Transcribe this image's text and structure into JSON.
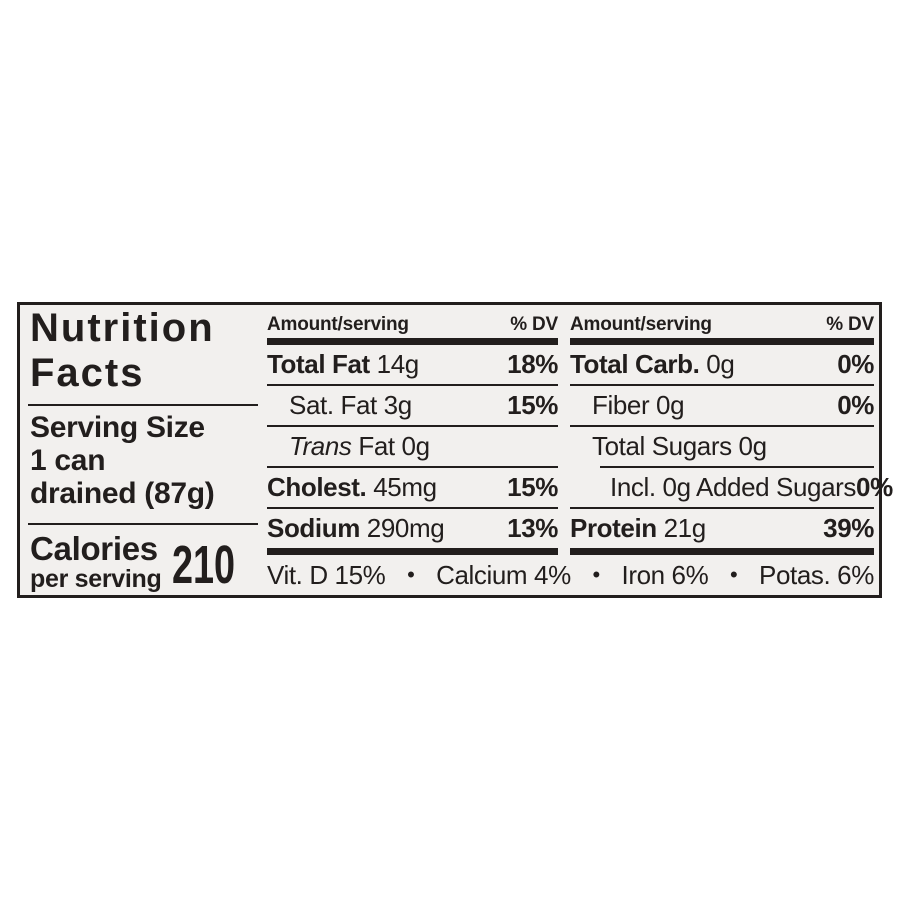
{
  "colors": {
    "ink": "#221e1d",
    "label_background": "#f2f0ee",
    "page_background": "#ffffff"
  },
  "label": {
    "left_panel": {
      "title_line1": "Nutrition",
      "title_line2": "Facts",
      "serving_label": "Serving Size",
      "serving_line1": "1 can",
      "serving_line2": "drained (87g)",
      "calories_label": "Calories",
      "calories_note": "per serving",
      "calories_value": "210"
    },
    "columns": [
      {
        "header_amount": "Amount/serving",
        "header_dv": "% DV",
        "rows": [
          {
            "bold": "Total Fat",
            "text": " 14g",
            "dv": "18%"
          },
          {
            "text": "Sat. Fat 3g",
            "dv": "15%"
          },
          {
            "italic": "Trans",
            "text": " Fat 0g",
            "dv": ""
          },
          {
            "bold": "Cholest.",
            "text": " 45mg",
            "dv": "15%"
          },
          {
            "bold": "Sodium",
            "text": " 290mg",
            "dv": "13%"
          }
        ]
      },
      {
        "header_amount": "Amount/serving",
        "header_dv": "% DV",
        "rows": [
          {
            "bold": "Total Carb.",
            "text": " 0g",
            "dv": "0%"
          },
          {
            "text": "Fiber 0g",
            "dv": "0%"
          },
          {
            "text": "Total Sugars 0g",
            "dv": ""
          },
          {
            "text": "Incl. 0g Added Sugars",
            "dv": "0%"
          },
          {
            "bold": "Protein",
            "text": " 21g",
            "dv": "39%"
          }
        ]
      }
    ],
    "micronutrients": {
      "separator": "•",
      "items": [
        "Vit. D 15%",
        "Calcium 4%",
        "Iron 6%",
        "Potas. 6%"
      ]
    }
  }
}
